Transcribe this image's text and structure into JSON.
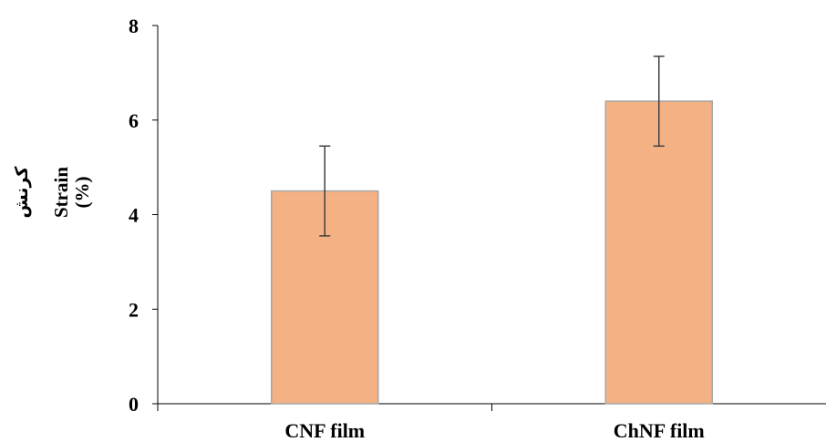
{
  "chart_data": {
    "type": "bar",
    "categories": [
      "CNF film",
      "ChNF film"
    ],
    "values": [
      4.5,
      6.4
    ],
    "errors": [
      0.95,
      0.95
    ],
    "ylabel": {
      "fa": "کرنش",
      "line1": "Strain",
      "line2": "(%)"
    },
    "ylim": [
      0,
      8
    ],
    "yticks": [
      "0",
      "2",
      "4",
      "6",
      "8"
    ],
    "grid": false,
    "legend": "none",
    "colors": {
      "bar_fill": "#f4b183",
      "bar_stroke": "#a6a6a6",
      "error_bar": "#404040",
      "axis": "#000000"
    }
  }
}
